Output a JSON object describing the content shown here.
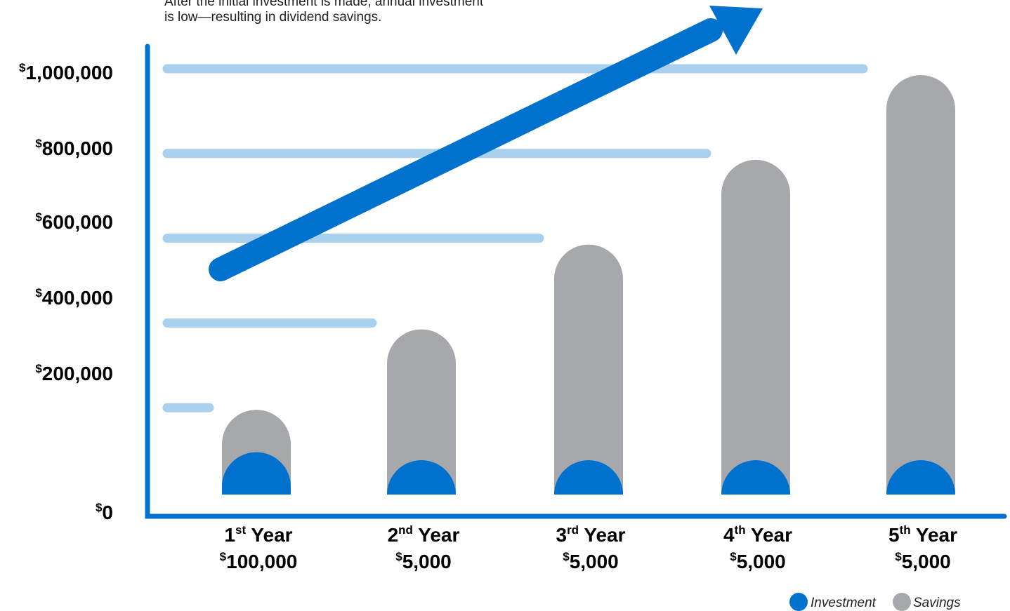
{
  "annotation": {
    "line1": "After the initial investment is made, annual investment",
    "line2": "is low—resulting in dividend savings."
  },
  "colors": {
    "investment": "#0072ce",
    "savings": "#a7a8ab",
    "gridline": "#aad0ee",
    "axis": "#0072ce",
    "arrow": "#0072ce"
  },
  "legend": {
    "position": "bottom-right",
    "items": [
      {
        "label": "Investment",
        "color": "#0072ce"
      },
      {
        "label": "Savings",
        "color": "#a7a8ab"
      }
    ]
  },
  "chart_data": {
    "type": "bar",
    "title": "",
    "xlabel": "",
    "ylabel": "",
    "ylim": [
      0,
      1000000
    ],
    "yticks": [
      {
        "value": 0,
        "sup": "$",
        "text": "0"
      },
      {
        "value": 200000,
        "sup": "$",
        "text": "200,000"
      },
      {
        "value": 400000,
        "sup": "$",
        "text": "400,000"
      },
      {
        "value": 600000,
        "sup": "$",
        "text": "600,000"
      },
      {
        "value": 800000,
        "sup": "$",
        "text": "800,000"
      },
      {
        "value": 1000000,
        "sup": "$",
        "text": "1,000,000"
      }
    ],
    "categories": [
      {
        "num": "1",
        "ord": "st",
        "word": "Year",
        "amount_sup": "$",
        "amount": "100,000"
      },
      {
        "num": "2",
        "ord": "nd",
        "word": "Year",
        "amount_sup": "$",
        "amount": "5,000"
      },
      {
        "num": "3",
        "ord": "rd",
        "word": "Year",
        "amount_sup": "$",
        "amount": "5,000"
      },
      {
        "num": "4",
        "ord": "th",
        "word": "Year",
        "amount_sup": "$",
        "amount": "5,000"
      },
      {
        "num": "5",
        "ord": "th",
        "word": "Year",
        "amount_sup": "$",
        "amount": "5,000"
      }
    ],
    "series": [
      {
        "name": "Savings",
        "values": [
          200000,
          390000,
          590000,
          790000,
          990000
        ]
      },
      {
        "name": "Investment",
        "values": [
          100000,
          5000,
          5000,
          5000,
          5000
        ]
      }
    ],
    "grid": true,
    "trend_arrow": true
  }
}
